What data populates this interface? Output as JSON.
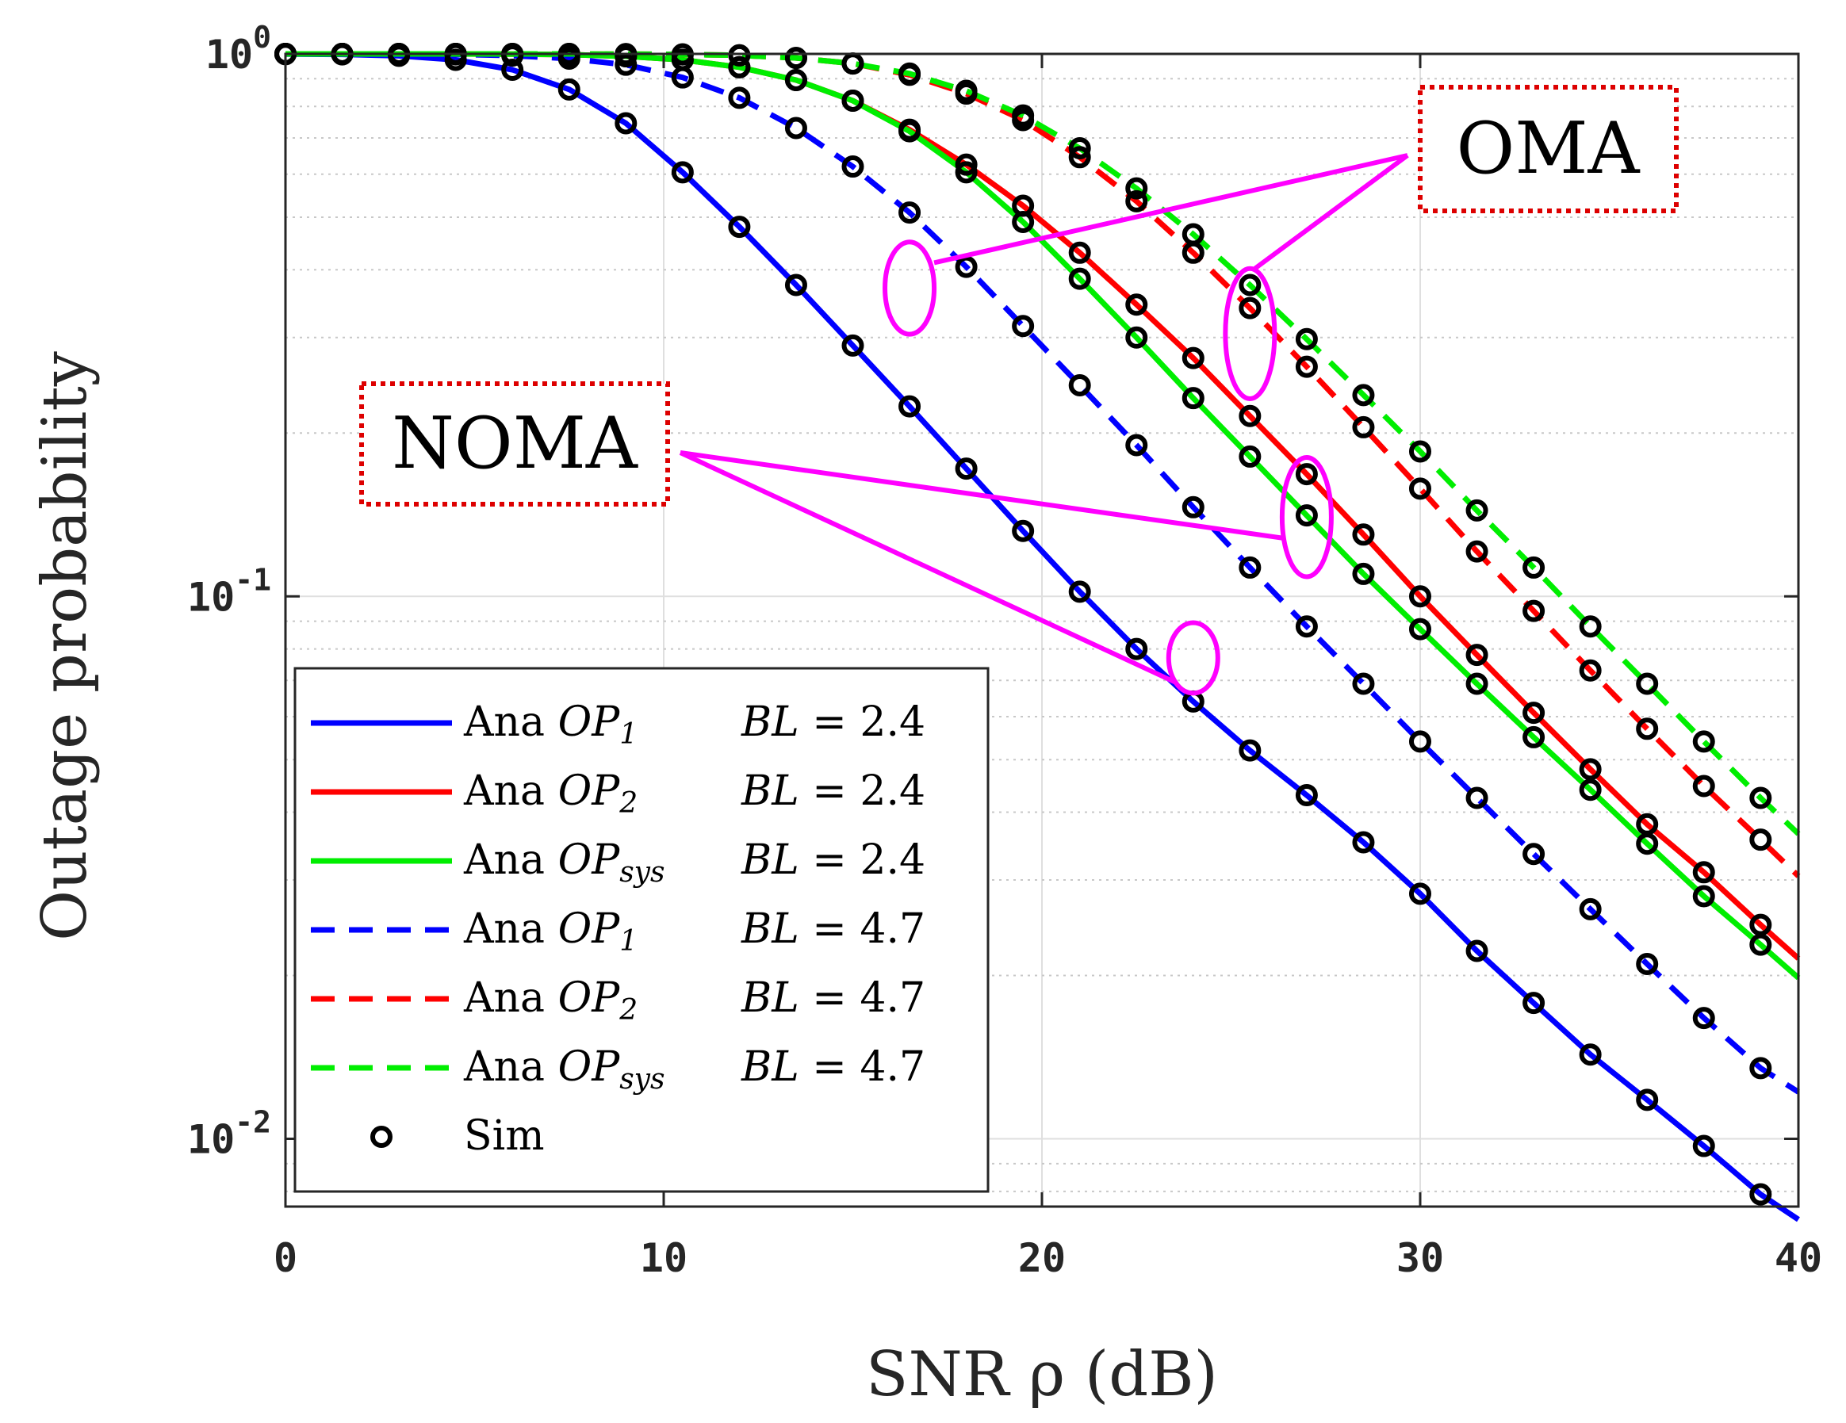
{
  "chart_data": {
    "type": "line",
    "title": "",
    "xlabel": "SNR ρ (dB)",
    "ylabel": "Outage probability",
    "xlim": [
      0,
      40
    ],
    "ylim": [
      0.0075,
      1
    ],
    "yscale": "log",
    "x_ticks": [
      0,
      10,
      20,
      30,
      40
    ],
    "x_tick_labels": [
      "0",
      "10",
      "20",
      "30",
      "40"
    ],
    "y_ticks": [
      0.01,
      0.1,
      1
    ],
    "y_tick_labels": [
      {
        "base": "10",
        "exp": "-2"
      },
      {
        "base": "10",
        "exp": "-1"
      },
      {
        "base": "10",
        "exp": "0"
      }
    ],
    "grid": true,
    "legend_position": "bottom-left",
    "series": [
      {
        "name": "Ana OP_1 BL = 2.4",
        "label_prefix": "Ana",
        "symbol": "OP",
        "sub": "1",
        "bl": "BL = 2.4",
        "color": "#0000ff",
        "dash": "solid",
        "scheme": "NOMA",
        "x": [
          0,
          1.5,
          3,
          4.5,
          6,
          7.5,
          9,
          10.5,
          12,
          13.5,
          15,
          16.5,
          18,
          19.5,
          21,
          22.5,
          24,
          25.5,
          27,
          28.5,
          30,
          31.5,
          33,
          34.5,
          36,
          37.5,
          39,
          40
        ],
        "y": [
          0.999,
          0.998,
          0.992,
          0.975,
          0.935,
          0.86,
          0.745,
          0.605,
          0.48,
          0.375,
          0.29,
          0.224,
          0.172,
          0.132,
          0.102,
          0.08,
          0.064,
          0.052,
          0.043,
          0.0352,
          0.0283,
          0.0222,
          0.0178,
          0.0143,
          0.0118,
          0.0097,
          0.0079,
          0.0071
        ]
      },
      {
        "name": "Ana OP_2 BL = 2.4",
        "label_prefix": "Ana",
        "symbol": "OP",
        "sub": "2",
        "bl": "BL = 2.4",
        "color": "#ff0000",
        "dash": "solid",
        "scheme": "NOMA",
        "x": [
          0,
          1.5,
          3,
          4.5,
          6,
          7.5,
          9,
          10.5,
          12,
          13.5,
          15,
          16.5,
          18,
          19.5,
          21,
          22.5,
          24,
          25.5,
          27,
          28.5,
          30,
          31.5,
          33,
          34.5,
          36,
          37.5,
          39,
          40
        ],
        "y": [
          1.0,
          1.0,
          1.0,
          1.0,
          0.999,
          0.997,
          0.99,
          0.975,
          0.945,
          0.895,
          0.82,
          0.725,
          0.625,
          0.525,
          0.43,
          0.345,
          0.275,
          0.215,
          0.168,
          0.13,
          0.1,
          0.078,
          0.061,
          0.048,
          0.038,
          0.031,
          0.0248,
          0.0215
        ]
      },
      {
        "name": "Ana OP_sys BL = 2.4",
        "label_prefix": "Ana",
        "symbol": "OP",
        "sub": "sys",
        "bl": "BL = 2.4",
        "color": "#00ee00",
        "dash": "solid",
        "scheme": "NOMA",
        "x": [
          0,
          1.5,
          3,
          4.5,
          6,
          7.5,
          9,
          10.5,
          12,
          13.5,
          15,
          16.5,
          18,
          19.5,
          21,
          22.5,
          24,
          25.5,
          27,
          28.5,
          30,
          31.5,
          33,
          34.5,
          36,
          37.5,
          39,
          40
        ],
        "y": [
          1.0,
          1.0,
          1.0,
          1.0,
          0.999,
          0.997,
          0.99,
          0.975,
          0.945,
          0.895,
          0.82,
          0.72,
          0.605,
          0.49,
          0.385,
          0.3,
          0.232,
          0.181,
          0.141,
          0.11,
          0.087,
          0.069,
          0.055,
          0.044,
          0.035,
          0.028,
          0.0228,
          0.0198
        ]
      },
      {
        "name": "Ana OP_1 BL = 4.7",
        "label_prefix": "Ana",
        "symbol": "OP",
        "sub": "1",
        "bl": "BL = 4.7",
        "color": "#0000ff",
        "dash": "dashed",
        "scheme": "OMA",
        "x": [
          0,
          1.5,
          3,
          4.5,
          6,
          7.5,
          9,
          10.5,
          12,
          13.5,
          15,
          16.5,
          18,
          19.5,
          21,
          22.5,
          24,
          25.5,
          27,
          28.5,
          30,
          31.5,
          33,
          34.5,
          36,
          37.5,
          39,
          40
        ],
        "y": [
          1.0,
          1.0,
          0.999,
          0.998,
          0.993,
          0.98,
          0.955,
          0.905,
          0.83,
          0.73,
          0.62,
          0.51,
          0.405,
          0.315,
          0.245,
          0.19,
          0.146,
          0.113,
          0.088,
          0.069,
          0.054,
          0.0425,
          0.0335,
          0.0265,
          0.021,
          0.0167,
          0.0135,
          0.0122
        ]
      },
      {
        "name": "Ana OP_2 BL = 4.7",
        "label_prefix": "Ana",
        "symbol": "OP",
        "sub": "2",
        "bl": "BL = 4.7",
        "color": "#ff0000",
        "dash": "dashed",
        "scheme": "OMA",
        "x": [
          0,
          1.5,
          3,
          4.5,
          6,
          7.5,
          9,
          10.5,
          12,
          13.5,
          15,
          16.5,
          18,
          19.5,
          21,
          22.5,
          24,
          25.5,
          27,
          28.5,
          30,
          31.5,
          33,
          34.5,
          36,
          37.5,
          39,
          40
        ],
        "y": [
          1.0,
          1.0,
          1.0,
          1.0,
          1.0,
          1.0,
          0.999,
          0.998,
          0.994,
          0.983,
          0.96,
          0.915,
          0.845,
          0.755,
          0.645,
          0.535,
          0.43,
          0.34,
          0.265,
          0.205,
          0.158,
          0.121,
          0.094,
          0.073,
          0.057,
          0.0447,
          0.0356,
          0.0305
        ]
      },
      {
        "name": "Ana OP_sys BL = 4.7",
        "label_prefix": "Ana",
        "symbol": "OP",
        "sub": "sys",
        "bl": "BL = 4.7",
        "color": "#00ee00",
        "dash": "dashed",
        "scheme": "OMA",
        "x": [
          0,
          1.5,
          3,
          4.5,
          6,
          7.5,
          9,
          10.5,
          12,
          13.5,
          15,
          16.5,
          18,
          19.5,
          21,
          22.5,
          24,
          25.5,
          27,
          28.5,
          30,
          31.5,
          33,
          34.5,
          36,
          37.5,
          39,
          40
        ],
        "y": [
          1.0,
          1.0,
          1.0,
          1.0,
          1.0,
          1.0,
          0.999,
          0.998,
          0.994,
          0.983,
          0.96,
          0.92,
          0.855,
          0.77,
          0.67,
          0.565,
          0.465,
          0.375,
          0.298,
          0.235,
          0.185,
          0.144,
          0.113,
          0.088,
          0.069,
          0.054,
          0.0425,
          0.0365
        ]
      }
    ],
    "sim_marker": {
      "label": "Sim",
      "style": "open-circle",
      "color": "#000000",
      "x_step": 1.5
    },
    "annotations": [
      {
        "text": "OMA",
        "box_style": "dotted-red",
        "position": "upper-right"
      },
      {
        "text": "NOMA",
        "box_style": "dotted-red",
        "position": "center-left"
      }
    ],
    "callouts": [
      {
        "label": "OMA",
        "ellipse": {
          "x": 16.5,
          "y": 0.37,
          "rx_data": 0.65,
          "log_half_height": 0.085
        }
      },
      {
        "label": "OMA",
        "ellipse": {
          "x": 25.5,
          "y": 0.305,
          "rx_data": 0.65,
          "log_half_height": 0.12
        }
      },
      {
        "label": "NOMA",
        "ellipse": {
          "x": 27,
          "y": 0.14,
          "rx_data": 0.65,
          "log_half_height": 0.11
        }
      },
      {
        "label": "NOMA",
        "ellipse": {
          "x": 24,
          "y": 0.077,
          "rx_data": 0.65,
          "log_half_height": 0.065
        }
      }
    ],
    "colors": {
      "axis": "#262626",
      "grid_major": "#dfdfdf",
      "grid_minor": "#c8c8c8",
      "callout": "#ff00ff",
      "box_border": "#dd0000"
    }
  }
}
